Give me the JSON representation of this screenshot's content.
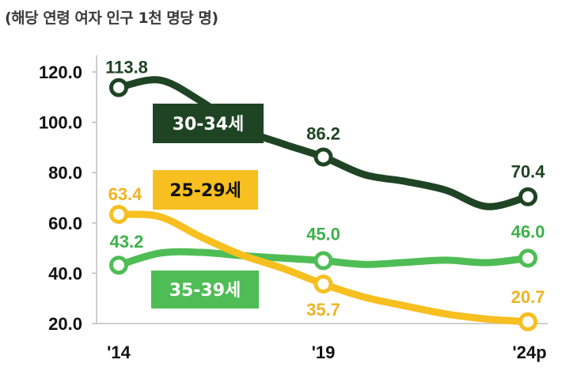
{
  "chart_data": {
    "type": "line",
    "unit_label": "(해당 연령 여자 인구 1천 명당 명)",
    "categories": [
      "'14",
      "'19",
      "'24p"
    ],
    "x_tick_labels": [
      "'14",
      "'19",
      "'24p"
    ],
    "y_ticks": [
      "120.0",
      "100.0",
      "80.0",
      "60.0",
      "40.0",
      "20.0"
    ],
    "ylim": [
      20,
      120
    ],
    "grid": false,
    "series": [
      {
        "name": "30-34세",
        "color": "#1f4424",
        "label_color": "#1f4424",
        "labels": [
          "113.8",
          "86.2",
          "70.4"
        ],
        "marker_years": [
          2014,
          2019,
          2024
        ],
        "marker_values": [
          113.8,
          86.2,
          70.4
        ],
        "curve": [
          [
            2014,
            113.8
          ],
          [
            2015,
            116.8
          ],
          [
            2016,
            108.5
          ],
          [
            2017,
            97.5
          ],
          [
            2018,
            91.5
          ],
          [
            2019,
            86.2
          ],
          [
            2020,
            79.2
          ],
          [
            2021,
            76.5
          ],
          [
            2022,
            73.0
          ],
          [
            2023,
            66.5
          ],
          [
            2024,
            70.4
          ]
        ]
      },
      {
        "name": "25-29세",
        "color": "#f7bf1f",
        "label_color": "#f0b323",
        "labels": [
          "63.4",
          "35.7",
          "20.7"
        ],
        "marker_years": [
          2014,
          2019,
          2024
        ],
        "marker_values": [
          63.4,
          35.7,
          20.7
        ],
        "curve": [
          [
            2014,
            63.4
          ],
          [
            2015,
            62.5
          ],
          [
            2016,
            54.5
          ],
          [
            2017,
            47.3
          ],
          [
            2018,
            42.0
          ],
          [
            2019,
            35.7
          ],
          [
            2020,
            30.5
          ],
          [
            2021,
            27.0
          ],
          [
            2022,
            23.8
          ],
          [
            2023,
            21.8
          ],
          [
            2024,
            20.7
          ]
        ]
      },
      {
        "name": "35-39세",
        "color": "#4fbd55",
        "label_color": "#3db14a",
        "labels": [
          "43.2",
          "45.0",
          "46.0"
        ],
        "marker_years": [
          2014,
          2019,
          2024
        ],
        "marker_values": [
          43.2,
          45.0,
          46.0
        ],
        "curve": [
          [
            2014,
            43.2
          ],
          [
            2015,
            48.0
          ],
          [
            2016,
            48.3
          ],
          [
            2017,
            47.0
          ],
          [
            2018,
            46.0
          ],
          [
            2019,
            45.0
          ],
          [
            2020,
            43.5
          ],
          [
            2021,
            44.3
          ],
          [
            2022,
            45.2
          ],
          [
            2023,
            44.2
          ],
          [
            2024,
            46.0
          ]
        ]
      }
    ]
  },
  "legend_boxes": {
    "s30": {
      "text": "30-34세",
      "bg": "#1f4424",
      "fg": "#ffffff"
    },
    "s25": {
      "text": "25-29세",
      "bg": "#f7bf1f",
      "fg": "#111111"
    },
    "s35": {
      "text": "35-39세",
      "bg": "#4fbd55",
      "fg": "#ffffff"
    }
  }
}
